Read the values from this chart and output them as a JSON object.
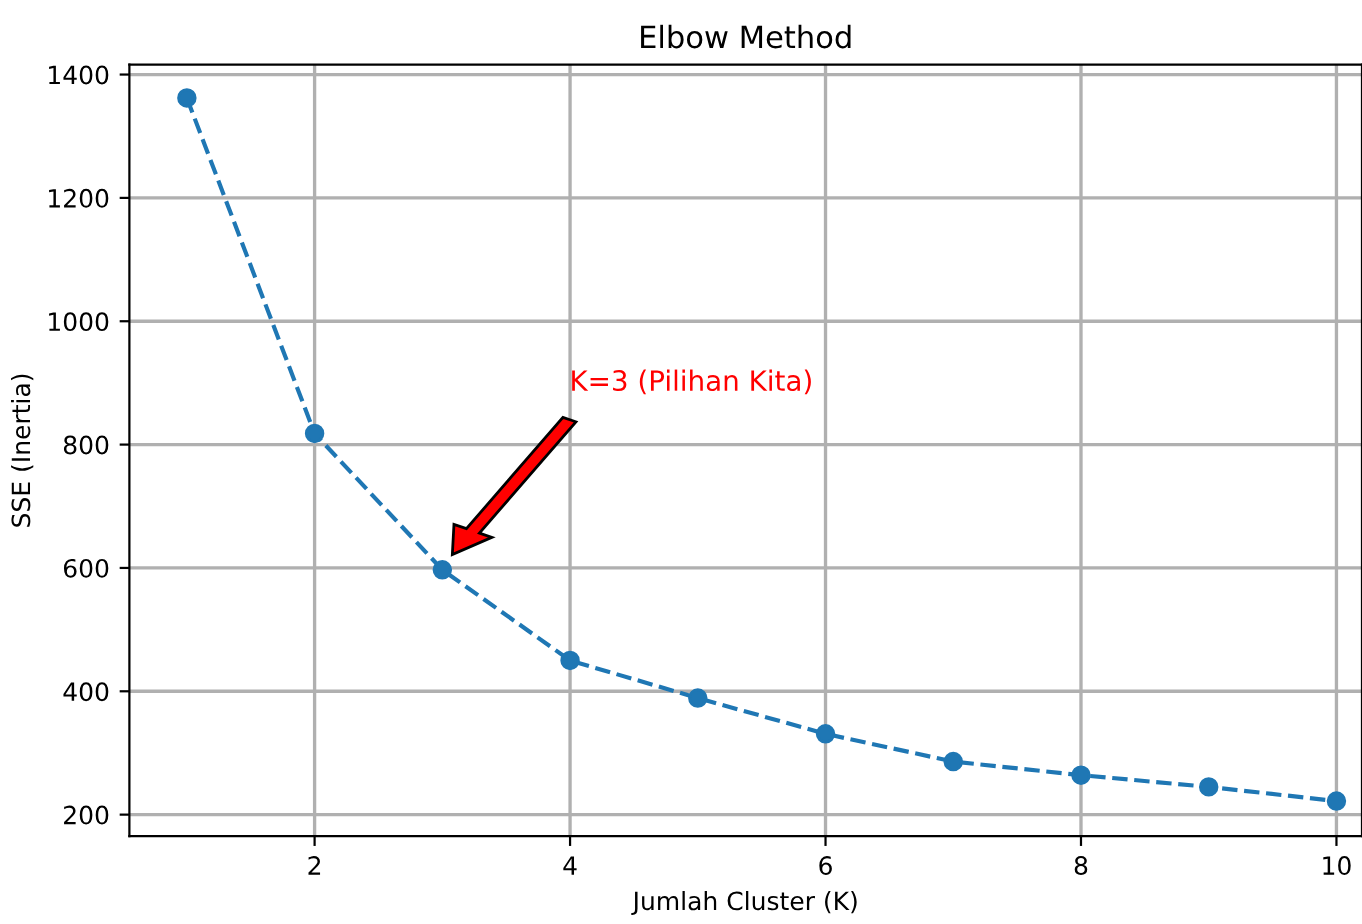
{
  "chart_data": {
    "type": "line",
    "title": "Elbow Method",
    "xlabel": "Jumlah Cluster (K)",
    "ylabel": "SSE (Inertia)",
    "x": [
      1,
      2,
      3,
      4,
      5,
      6,
      7,
      8,
      9,
      10
    ],
    "series": [
      {
        "color": "#1f77b4",
        "values": [
          1362,
          818,
          597,
          450,
          389,
          331,
          286,
          264,
          245,
          222
        ]
      }
    ],
    "xlim": [
      0.55,
      10.2
    ],
    "xticks": [
      2,
      4,
      6,
      8,
      10
    ],
    "ylim": [
      165,
      1416
    ],
    "yticks": [
      200,
      400,
      600,
      800,
      1000,
      1200,
      1400
    ],
    "grid": true,
    "marker": "circle",
    "line_style": "dashed",
    "legend": false,
    "annotations": [
      "K=3 (Pilihan Kita)"
    ]
  }
}
